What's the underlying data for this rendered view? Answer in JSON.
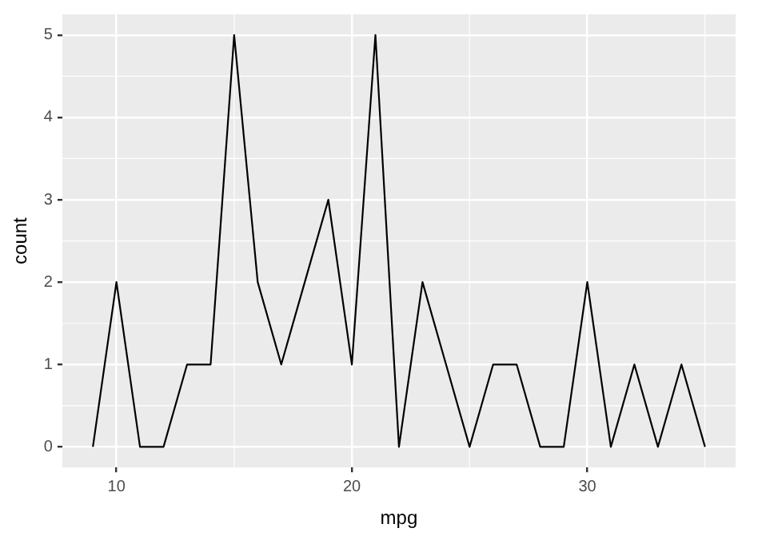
{
  "chart_data": {
    "type": "line",
    "xlabel": "mpg",
    "ylabel": "count",
    "x": [
      9,
      10,
      11,
      12,
      13,
      14,
      15,
      16,
      17,
      18,
      19,
      20,
      21,
      22,
      23,
      24,
      25,
      26,
      27,
      28,
      29,
      30,
      31,
      32,
      33,
      34,
      35
    ],
    "series": [
      {
        "color": "#000000",
        "values": [
          0,
          2,
          0,
          0,
          1,
          1,
          5,
          2,
          1,
          2,
          3,
          1,
          5,
          0,
          2,
          1,
          0,
          1,
          1,
          0,
          0,
          2,
          0,
          1,
          0,
          1,
          0
        ]
      }
    ],
    "xlim": [
      7.7,
      36.3
    ],
    "xticks": [
      10,
      20,
      30
    ],
    "ylim": [
      -0.25,
      5.25
    ],
    "yticks": [
      0,
      1,
      2,
      3,
      4,
      5
    ],
    "grid": true,
    "legend": false,
    "marker": "none",
    "line_style": "solid"
  }
}
